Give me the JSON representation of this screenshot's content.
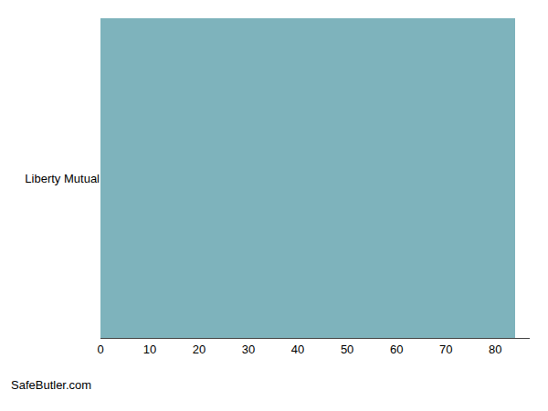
{
  "chart_data": {
    "type": "bar",
    "orientation": "horizontal",
    "categories": [
      "Liberty Mutual"
    ],
    "values": [
      84
    ],
    "color": "#7eb3bc",
    "xlim": [
      0,
      87
    ],
    "xticks": [
      0,
      10,
      20,
      30,
      40,
      50,
      60,
      70,
      80
    ],
    "grid": true,
    "annotations": [
      "SafeButler.com"
    ]
  }
}
